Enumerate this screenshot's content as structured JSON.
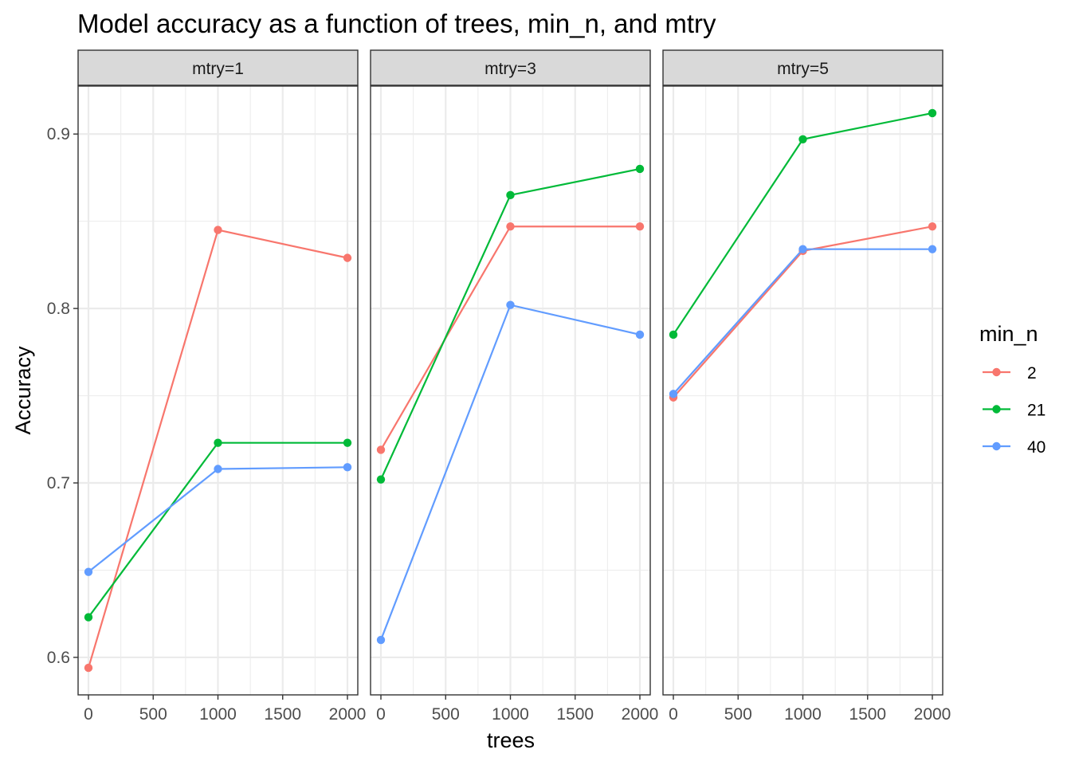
{
  "chart_data": {
    "type": "line",
    "title": "Model accuracy as a function of trees, min_n, and mtry",
    "xlabel": "trees",
    "ylabel": "Accuracy",
    "x": [
      0,
      1000,
      2000
    ],
    "xlim": [
      -80,
      2080
    ],
    "ylim": [
      0.5785,
      0.9275
    ],
    "x_ticks": [
      0,
      500,
      1000,
      1500,
      2000
    ],
    "x_tick_labels": [
      "0",
      "500",
      "1000",
      "1500",
      "2000"
    ],
    "y_ticks": [
      0.6,
      0.7,
      0.8,
      0.9
    ],
    "y_tick_labels": [
      "0.6",
      "0.7",
      "0.8",
      "0.9"
    ],
    "grid": true,
    "legend": {
      "title": "min_n",
      "placement": "right",
      "entries": [
        {
          "label": "2",
          "color": "#F8766D"
        },
        {
          "label": "21",
          "color": "#00BA38"
        },
        {
          "label": "40",
          "color": "#619CFF"
        }
      ]
    },
    "facets": [
      {
        "label": "mtry=1",
        "series": [
          {
            "name": "2",
            "color": "#F8766D",
            "values": [
              0.594,
              0.845,
              0.829
            ]
          },
          {
            "name": "21",
            "color": "#00BA38",
            "values": [
              0.623,
              0.723,
              0.723
            ]
          },
          {
            "name": "40",
            "color": "#619CFF",
            "values": [
              0.649,
              0.708,
              0.709
            ]
          }
        ]
      },
      {
        "label": "mtry=3",
        "series": [
          {
            "name": "2",
            "color": "#F8766D",
            "values": [
              0.719,
              0.847,
              0.847
            ]
          },
          {
            "name": "21",
            "color": "#00BA38",
            "values": [
              0.702,
              0.865,
              0.88
            ]
          },
          {
            "name": "40",
            "color": "#619CFF",
            "values": [
              0.61,
              0.802,
              0.785
            ]
          }
        ]
      },
      {
        "label": "mtry=5",
        "series": [
          {
            "name": "2",
            "color": "#F8766D",
            "values": [
              0.749,
              0.833,
              0.847
            ]
          },
          {
            "name": "21",
            "color": "#00BA38",
            "values": [
              0.785,
              0.897,
              0.912
            ]
          },
          {
            "name": "40",
            "color": "#619CFF",
            "values": [
              0.751,
              0.834,
              0.834
            ]
          }
        ]
      }
    ]
  }
}
